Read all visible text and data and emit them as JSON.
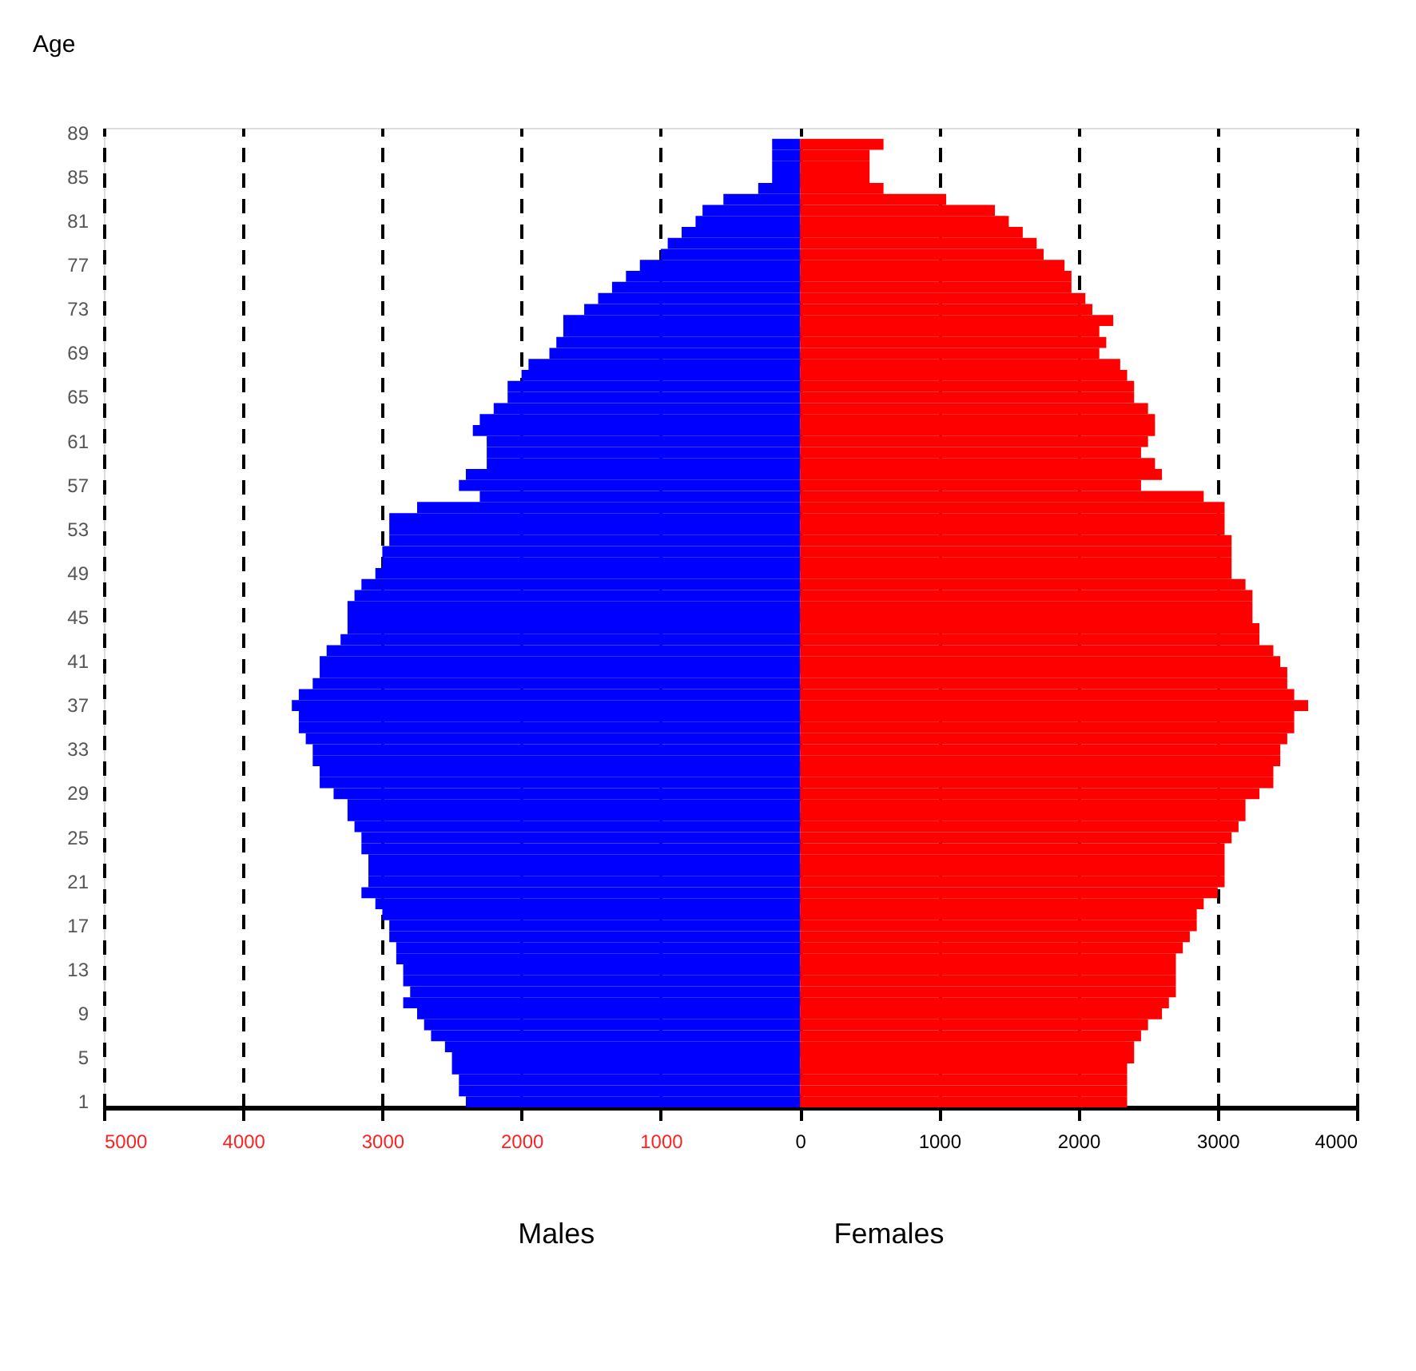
{
  "chart_data": {
    "type": "bar",
    "orientation": "horizontal",
    "stacked": true,
    "ylabel": "Age",
    "categories": [
      "89",
      null,
      null,
      null,
      "85",
      null,
      null,
      null,
      "81",
      null,
      null,
      null,
      "77",
      null,
      null,
      null,
      "73",
      null,
      null,
      null,
      "69",
      null,
      null,
      null,
      "65",
      null,
      null,
      null,
      "61",
      null,
      null,
      null,
      "57",
      null,
      null,
      null,
      "53",
      null,
      null,
      null,
      "49",
      null,
      null,
      null,
      "45",
      null,
      null,
      null,
      "41",
      null,
      null,
      null,
      "37",
      null,
      null,
      null,
      "33",
      null,
      null,
      null,
      "29",
      null,
      null,
      null,
      "25",
      null,
      null,
      null,
      "21",
      null,
      null,
      null,
      "17",
      null,
      null,
      null,
      "13",
      null,
      null,
      null,
      "9",
      null,
      null,
      null,
      "5",
      null,
      null,
      null,
      "1"
    ],
    "series": [
      {
        "color": "#0000ff",
        "values": [
          null,
          -200,
          -200,
          -200,
          -200,
          -300,
          -550,
          -700,
          -750,
          -850,
          -950,
          -1000,
          -1150,
          -1250,
          -1350,
          -1450,
          -1550,
          -1700,
          -1700,
          -1750,
          -1800,
          -1950,
          -2000,
          -2100,
          -2100,
          -2200,
          -2300,
          -2350,
          -2250,
          -2250,
          -2250,
          -2400,
          -2450,
          -2300,
          -2750,
          -2950,
          -2950,
          -2950,
          -3000,
          -3000,
          -3050,
          -3150,
          -3200,
          -3250,
          -3250,
          -3250,
          -3300,
          -3400,
          -3450,
          -3450,
          -3500,
          -3600,
          -3650,
          -3600,
          -3600,
          -3550,
          -3500,
          -3500,
          -3450,
          -3450,
          -3350,
          -3250,
          -3250,
          -3200,
          -3150,
          -3150,
          -3100,
          -3100,
          -3100,
          -3150,
          -3050,
          -3000,
          -2950,
          -2950,
          -2900,
          -2900,
          -2850,
          -2850,
          -2800,
          -2850,
          -2750,
          -2700,
          -2650,
          -2550,
          -2500,
          -2500,
          -2450,
          -2450,
          -2400
        ]
      },
      {
        "color": "#ff0000",
        "values": [
          null,
          600,
          500,
          500,
          500,
          600,
          1050,
          1400,
          1500,
          1600,
          1700,
          1750,
          1900,
          1950,
          1950,
          2050,
          2100,
          2250,
          2150,
          2200,
          2150,
          2300,
          2350,
          2400,
          2400,
          2500,
          2550,
          2550,
          2500,
          2450,
          2550,
          2600,
          2450,
          2900,
          3050,
          3050,
          3050,
          3100,
          3100,
          3100,
          3100,
          3200,
          3250,
          3250,
          3250,
          3300,
          3300,
          3400,
          3450,
          3500,
          3500,
          3550,
          3650,
          3550,
          3550,
          3500,
          3450,
          3450,
          3400,
          3400,
          3300,
          3200,
          3200,
          3150,
          3100,
          3050,
          3050,
          3050,
          3050,
          3000,
          2900,
          2850,
          2850,
          2800,
          2750,
          2700,
          2700,
          2700,
          2700,
          2650,
          2600,
          2500,
          2450,
          2400,
          2400,
          2350,
          2350,
          2350,
          2350
        ]
      }
    ],
    "annotations": [
      "Males",
      "Females"
    ],
    "xlim": [
      -5000,
      4000
    ],
    "xticks": [
      {
        "value": -5000,
        "label": "5000"
      },
      {
        "value": -4000,
        "label": "4000"
      },
      {
        "value": -3000,
        "label": "3000"
      },
      {
        "value": -2000,
        "label": "2000"
      },
      {
        "value": -1000,
        "label": "1000"
      },
      0,
      1000,
      2000,
      3000,
      4000
    ],
    "grid": "x",
    "legend": false
  }
}
